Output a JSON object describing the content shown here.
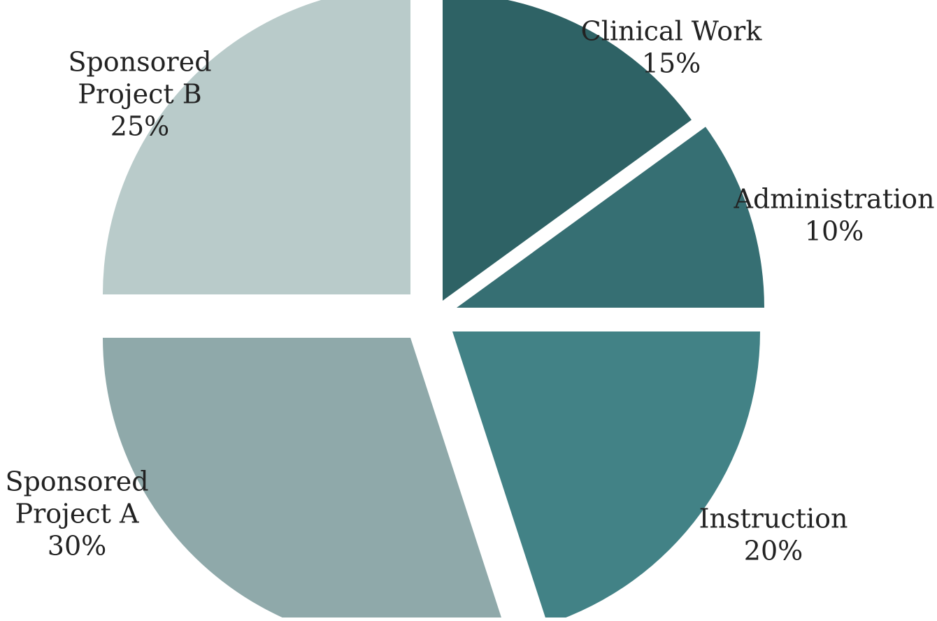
{
  "chart_data": {
    "type": "pie",
    "title": "",
    "slices": [
      {
        "label_lines": [
          "Clinical Work"
        ],
        "label": "Clinical Work",
        "value": 15,
        "value_label": "15%",
        "color": "#2e6265"
      },
      {
        "label_lines": [
          "Administration"
        ],
        "label": "Administration",
        "value": 10,
        "value_label": "10%",
        "color": "#366f73"
      },
      {
        "label_lines": [
          "Instruction"
        ],
        "label": "Instruction",
        "value": 20,
        "value_label": "20%",
        "color": "#428286"
      },
      {
        "label_lines": [
          "Sponsored",
          "Project A"
        ],
        "label": "Sponsored Project A",
        "value": 30,
        "value_label": "30%",
        "color": "#8fa9aa"
      },
      {
        "label_lines": [
          "Sponsored",
          "Project B"
        ],
        "label": "Sponsored Project B",
        "value": 25,
        "value_label": "25%",
        "color": "#b9cbca"
      }
    ]
  }
}
